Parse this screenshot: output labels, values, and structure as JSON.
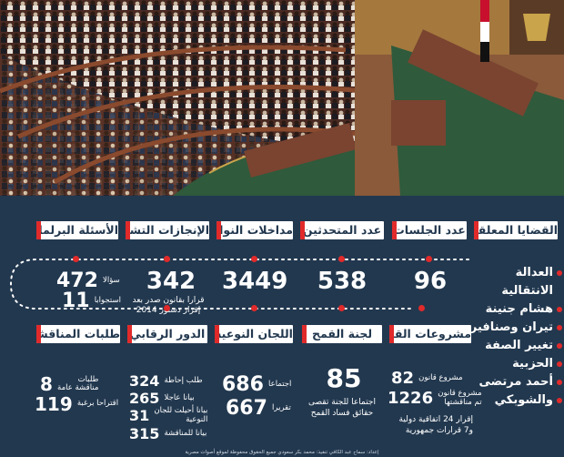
{
  "row1": [
    {
      "header": "الأسئلة البرلمانية"
    },
    {
      "header": "الإنجازات التشريعية",
      "value": "342",
      "note_line1": "قرارا بقانون صدر بعد",
      "note_line2": "إقرار دستور 2014"
    },
    {
      "header": "مداخلات النواب",
      "value": "3449"
    },
    {
      "header": "عدد المتحدثين",
      "value": "538"
    },
    {
      "header": "عدد الجلسات",
      "value": "96"
    },
    {
      "header": "القضايا المعلقة"
    }
  ],
  "questions": [
    {
      "value": "472",
      "label": "سؤالا"
    },
    {
      "value": "11",
      "label": "استجوابا"
    }
  ],
  "pending": [
    "العدالة الانتقالية",
    "هشام جنينة",
    "تيران وصنافير",
    "تغيير الصفة",
    "الحزبية",
    "أحمد مرتضى",
    "والشوبكي"
  ],
  "row2": [
    {
      "header": "طلبات المناقشة"
    },
    {
      "header": "الدور الرقابي"
    },
    {
      "header": "اللجان النوعية"
    },
    {
      "header": "لجنة القمح",
      "value": "85",
      "note_line1": "اجتماعا للجنة تقصى",
      "note_line2": "حقائق فساد القمح"
    },
    {
      "header": "مشروعات القوانين"
    }
  ],
  "discussion": [
    {
      "value": "8",
      "label_line1": "طلبات",
      "label_line2": "مناقشة عامة"
    },
    {
      "value": "119",
      "label_line1": "اقتراحا برغبة",
      "label_line2": ""
    }
  ],
  "oversight": [
    {
      "value": "324",
      "label_line1": "طلب إحاطة",
      "label_line2": ""
    },
    {
      "value": "265",
      "label_line1": "بيانا عاجلا",
      "label_line2": ""
    },
    {
      "value": "31",
      "label_line1": "بيانا أحيلت للجان",
      "label_line2": "النوعية"
    },
    {
      "value": "315",
      "label_line1": "بيانا للمناقشة",
      "label_line2": ""
    }
  ],
  "committees": [
    {
      "value": "686",
      "label": "اجتماعا"
    },
    {
      "value": "667",
      "label": "تقريرا"
    }
  ],
  "laws": [
    {
      "value": "82",
      "label_line1": "مشروع قانون",
      "label_line2": ""
    },
    {
      "value": "1226",
      "label_line1": "مشروع قانون",
      "label_line2": "تم مناقشتها"
    }
  ],
  "agreements_line1": "إقرار 24 اتفاقية دولية",
  "agreements_line2": "و7 قرارات جمهورية",
  "footer": "إعداد: سماح عبد الكافي   تنفيذ: محمد بكر سعودي      جميع الحقوق محفوظة لموقع أصوات مصرية",
  "colors": {
    "background": "#22384f",
    "accent": "#e12a2a",
    "header_bg": "#ffffff",
    "header_text": "#22384f"
  }
}
